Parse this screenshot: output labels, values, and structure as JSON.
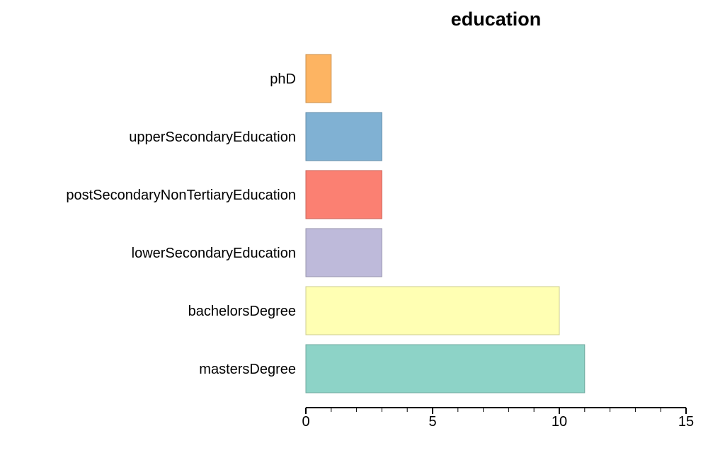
{
  "chart_data": {
    "type": "bar",
    "orientation": "horizontal",
    "title": "education",
    "xlabel": "",
    "ylabel": "",
    "categories": [
      "phD",
      "upperSecondaryEducation",
      "postSecondaryNonTertiaryEducation",
      "lowerSecondaryEducation",
      "bachelorsDegree",
      "mastersDegree"
    ],
    "values": [
      1,
      3,
      3,
      3,
      10,
      11
    ],
    "colors": [
      "#fdb462",
      "#80b1d3",
      "#fb8072",
      "#bebada",
      "#ffffb3",
      "#8dd3c7"
    ],
    "xlim": [
      0,
      15
    ],
    "xticks": [
      0,
      5,
      10,
      15
    ],
    "grid": false,
    "legend": "none"
  }
}
